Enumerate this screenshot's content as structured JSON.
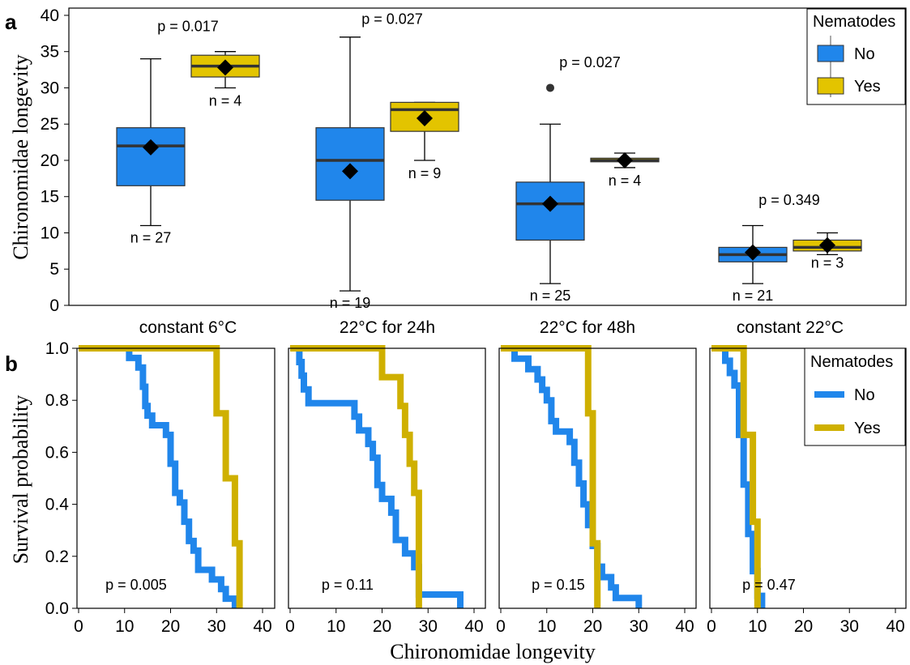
{
  "panel_a_label": "a",
  "panel_b_label": "b",
  "colors": {
    "no": "#2086EB",
    "yes": "#E3C400",
    "yes_line": "#CFB000"
  },
  "chart_data": [
    {
      "type": "box",
      "ylabel": "Chironomidae longevity",
      "ylim": [
        0,
        41
      ],
      "yticks": [
        0,
        5,
        10,
        15,
        20,
        25,
        30,
        35,
        40
      ],
      "categories": [
        "constant 6°C",
        "22°C for 24h",
        "22°C for 48h",
        "constant 22°C"
      ],
      "legend": {
        "title": "Nematodes",
        "entries": [
          "No",
          "Yes"
        ],
        "position": "top-right"
      },
      "series": [
        {
          "name": "No",
          "boxes": [
            {
              "min": 11,
              "q1": 16.5,
              "median": 22,
              "q3": 24.5,
              "max": 34,
              "mean": 21.8,
              "n_label": "n = 27",
              "outliers": []
            },
            {
              "min": 2,
              "q1": 14.5,
              "median": 20,
              "q3": 24.5,
              "max": 37,
              "mean": 18.5,
              "n_label": "n = 19",
              "outliers": []
            },
            {
              "min": 3,
              "q1": 9,
              "median": 14,
              "q3": 17,
              "max": 25,
              "mean": 14,
              "n_label": "n = 25",
              "outliers": [
                30
              ]
            },
            {
              "min": 3,
              "q1": 6,
              "median": 7,
              "q3": 8,
              "max": 11,
              "mean": 7.3,
              "n_label": "n = 21",
              "outliers": []
            }
          ]
        },
        {
          "name": "Yes",
          "boxes": [
            {
              "min": 30,
              "q1": 31.5,
              "median": 33,
              "q3": 34.5,
              "max": 35,
              "mean": 32.8,
              "n_label": "n = 4",
              "outliers": []
            },
            {
              "min": 20,
              "q1": 24,
              "median": 27,
              "q3": 28,
              "max": 28,
              "mean": 25.8,
              "n_label": "n = 9",
              "outliers": []
            },
            {
              "min": 19,
              "q1": 19.8,
              "median": 20,
              "q3": 20.3,
              "max": 21,
              "mean": 20,
              "n_label": "n = 4",
              "outliers": []
            },
            {
              "min": 7,
              "q1": 7.5,
              "median": 8,
              "q3": 9,
              "max": 10,
              "mean": 8.3,
              "n_label": "n = 3",
              "outliers": []
            }
          ]
        }
      ],
      "p_values": [
        "p = 0.017",
        "p = 0.027",
        "p = 0.027",
        "p = 0.349"
      ],
      "p_value_y": [
        38.5,
        39.5,
        33.5,
        14.5
      ]
    },
    {
      "type": "line",
      "subtype": "survival-step",
      "ylabel": "Survival probability",
      "xlabel": "Chironomidae longevity",
      "xlim": [
        0,
        40
      ],
      "ylim": [
        0,
        1
      ],
      "xticks": [
        0,
        10,
        20,
        30,
        40
      ],
      "yticks": [
        "0.0",
        "0.2",
        "0.4",
        "0.6",
        "0.8",
        "1.0"
      ],
      "legend": {
        "title": "Nematodes",
        "entries": [
          "No",
          "Yes"
        ],
        "position": "top-right"
      },
      "panels": [
        {
          "p_label": "p = 0.005",
          "no": [
            [
              0,
              1
            ],
            [
              11,
              1
            ],
            [
              11,
              0.963
            ],
            [
              13,
              0.963
            ],
            [
              13,
              0.926
            ],
            [
              14,
              0.926
            ],
            [
              14,
              0.852
            ],
            [
              14.5,
              0.852
            ],
            [
              14.5,
              0.778
            ],
            [
              15,
              0.778
            ],
            [
              15,
              0.741
            ],
            [
              16,
              0.741
            ],
            [
              16,
              0.704
            ],
            [
              19,
              0.704
            ],
            [
              19,
              0.667
            ],
            [
              20,
              0.667
            ],
            [
              20,
              0.556
            ],
            [
              21,
              0.556
            ],
            [
              21,
              0.444
            ],
            [
              22,
              0.444
            ],
            [
              22,
              0.407
            ],
            [
              23,
              0.407
            ],
            [
              23,
              0.333
            ],
            [
              24,
              0.333
            ],
            [
              24,
              0.259
            ],
            [
              25,
              0.259
            ],
            [
              25,
              0.222
            ],
            [
              26,
              0.222
            ],
            [
              26,
              0.148
            ],
            [
              29,
              0.148
            ],
            [
              29,
              0.111
            ],
            [
              31,
              0.111
            ],
            [
              31,
              0.074
            ],
            [
              32,
              0.074
            ],
            [
              32,
              0.037
            ],
            [
              34,
              0.037
            ],
            [
              34,
              0
            ]
          ],
          "yes": [
            [
              0,
              1
            ],
            [
              30,
              1
            ],
            [
              30,
              0.75
            ],
            [
              32,
              0.75
            ],
            [
              32,
              0.5
            ],
            [
              34,
              0.5
            ],
            [
              34,
              0.25
            ],
            [
              35,
              0.25
            ],
            [
              35,
              0
            ]
          ]
        },
        {
          "p_label": "p = 0.11",
          "no": [
            [
              0,
              1
            ],
            [
              2,
              1
            ],
            [
              2,
              0.947
            ],
            [
              2.5,
              0.947
            ],
            [
              2.5,
              0.895
            ],
            [
              3,
              0.895
            ],
            [
              3,
              0.842
            ],
            [
              4,
              0.842
            ],
            [
              4,
              0.789
            ],
            [
              14,
              0.789
            ],
            [
              14,
              0.737
            ],
            [
              15,
              0.737
            ],
            [
              15,
              0.684
            ],
            [
              17,
              0.684
            ],
            [
              17,
              0.632
            ],
            [
              18,
              0.632
            ],
            [
              18,
              0.579
            ],
            [
              19,
              0.579
            ],
            [
              19,
              0.474
            ],
            [
              20,
              0.474
            ],
            [
              20,
              0.421
            ],
            [
              22,
              0.421
            ],
            [
              22,
              0.368
            ],
            [
              23,
              0.368
            ],
            [
              23,
              0.263
            ],
            [
              25,
              0.263
            ],
            [
              25,
              0.211
            ],
            [
              27,
              0.211
            ],
            [
              27,
              0.158
            ],
            [
              28,
              0.158
            ],
            [
              28,
              0.053
            ],
            [
              37,
              0.053
            ],
            [
              37,
              0
            ]
          ],
          "yes": [
            [
              0,
              1
            ],
            [
              20,
              1
            ],
            [
              20,
              0.889
            ],
            [
              24,
              0.889
            ],
            [
              24,
              0.778
            ],
            [
              25,
              0.778
            ],
            [
              25,
              0.667
            ],
            [
              26,
              0.667
            ],
            [
              26,
              0.556
            ],
            [
              27,
              0.556
            ],
            [
              27,
              0.444
            ],
            [
              28,
              0.444
            ],
            [
              28,
              0
            ]
          ]
        },
        {
          "p_label": "p = 0.15",
          "no": [
            [
              0,
              1
            ],
            [
              3,
              1
            ],
            [
              3,
              0.96
            ],
            [
              6,
              0.96
            ],
            [
              6,
              0.92
            ],
            [
              8,
              0.92
            ],
            [
              8,
              0.88
            ],
            [
              9,
              0.88
            ],
            [
              9,
              0.84
            ],
            [
              10,
              0.84
            ],
            [
              10,
              0.8
            ],
            [
              11,
              0.8
            ],
            [
              11,
              0.72
            ],
            [
              12,
              0.72
            ],
            [
              12,
              0.68
            ],
            [
              15,
              0.68
            ],
            [
              15,
              0.64
            ],
            [
              16,
              0.64
            ],
            [
              16,
              0.56
            ],
            [
              17,
              0.56
            ],
            [
              17,
              0.48
            ],
            [
              18,
              0.48
            ],
            [
              18,
              0.4
            ],
            [
              19,
              0.4
            ],
            [
              19,
              0.32
            ],
            [
              20,
              0.32
            ],
            [
              20,
              0.24
            ],
            [
              21,
              0.24
            ],
            [
              21,
              0.16
            ],
            [
              22,
              0.16
            ],
            [
              22,
              0.12
            ],
            [
              24,
              0.12
            ],
            [
              24,
              0.08
            ],
            [
              25,
              0.08
            ],
            [
              25,
              0.04
            ],
            [
              30,
              0.04
            ],
            [
              30,
              0
            ]
          ],
          "yes": [
            [
              0,
              1
            ],
            [
              19,
              1
            ],
            [
              19,
              0.75
            ],
            [
              20,
              0.75
            ],
            [
              20,
              0.25
            ],
            [
              21,
              0.25
            ],
            [
              21,
              0
            ]
          ]
        },
        {
          "p_label": "p = 0.47",
          "no": [
            [
              0,
              1
            ],
            [
              3,
              1
            ],
            [
              3,
              0.952
            ],
            [
              4,
              0.952
            ],
            [
              4,
              0.905
            ],
            [
              5,
              0.905
            ],
            [
              5,
              0.857
            ],
            [
              6,
              0.857
            ],
            [
              6,
              0.667
            ],
            [
              7,
              0.667
            ],
            [
              7,
              0.476
            ],
            [
              8,
              0.476
            ],
            [
              8,
              0.286
            ],
            [
              9,
              0.286
            ],
            [
              9,
              0.143
            ],
            [
              10,
              0.143
            ],
            [
              10,
              0.048
            ],
            [
              11,
              0.048
            ],
            [
              11,
              0
            ]
          ],
          "yes": [
            [
              0,
              1
            ],
            [
              7,
              1
            ],
            [
              7,
              0.667
            ],
            [
              9,
              0.667
            ],
            [
              9,
              0.333
            ],
            [
              10,
              0.333
            ],
            [
              10,
              0
            ]
          ]
        }
      ]
    }
  ]
}
